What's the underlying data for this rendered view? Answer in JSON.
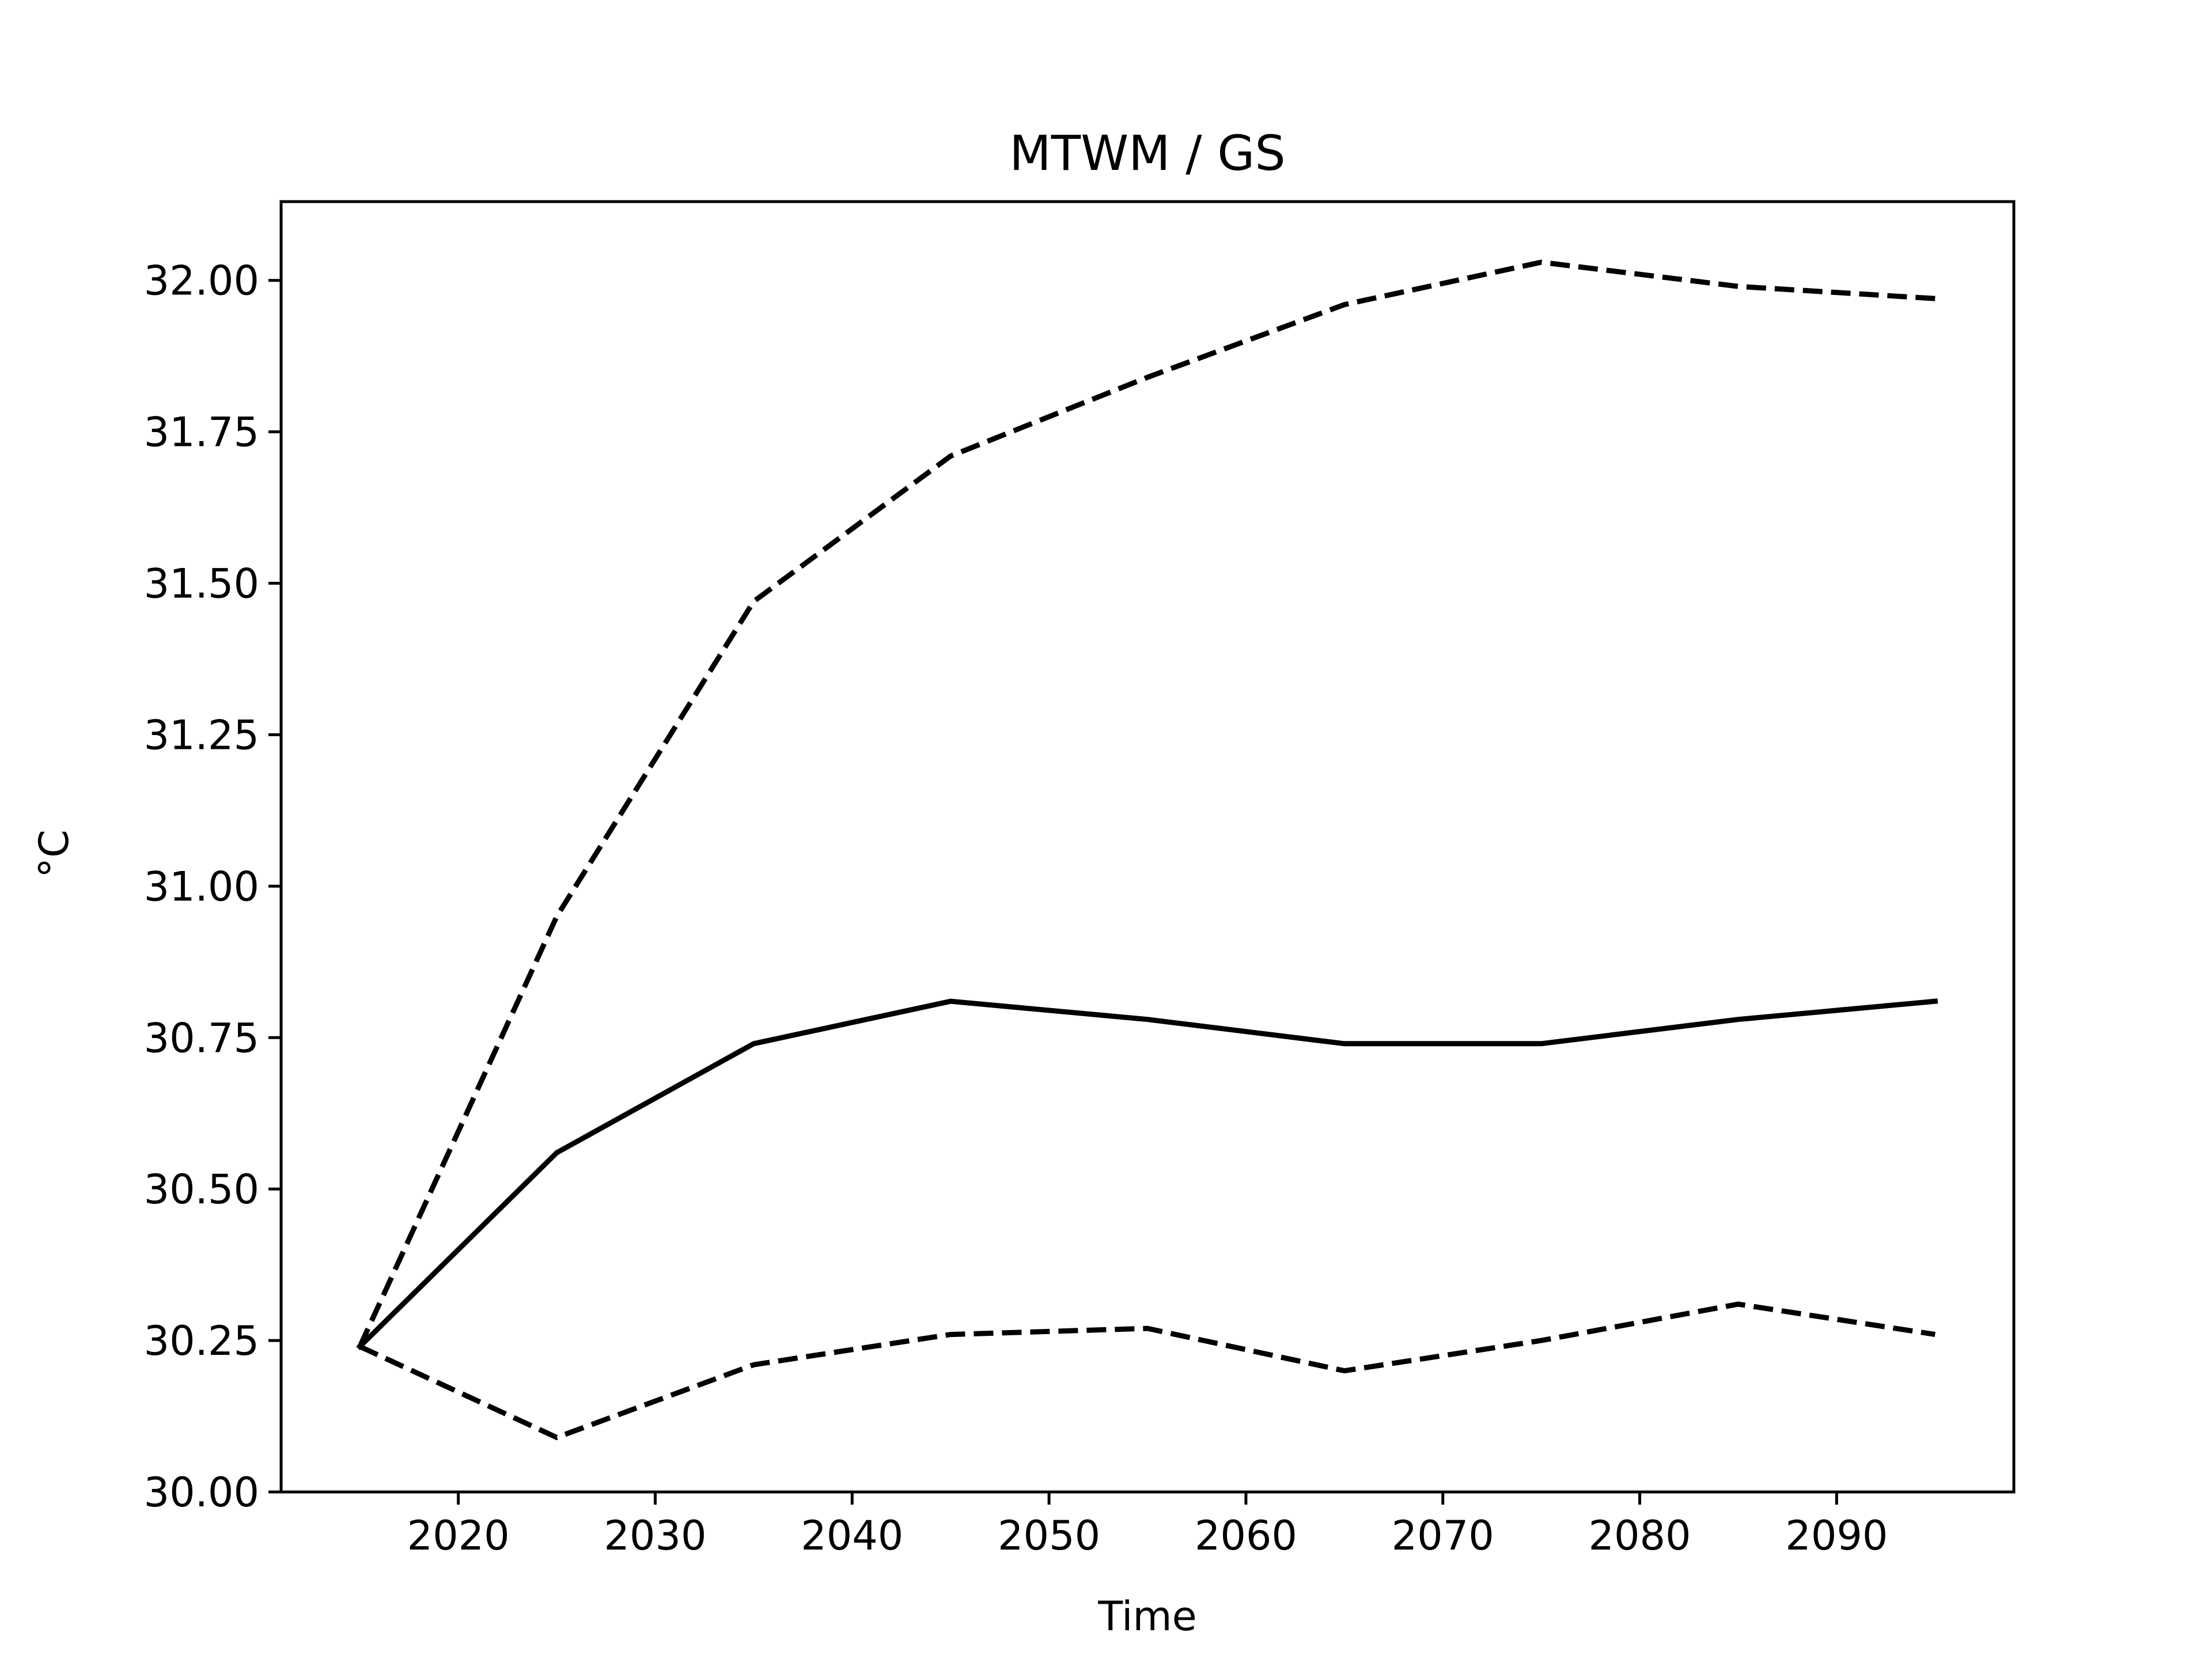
{
  "chart_data": {
    "type": "line",
    "title": "MTWM / GS",
    "xlabel": "Time",
    "ylabel": "°C",
    "xlim": [
      2011,
      2099
    ],
    "ylim": [
      30.0,
      32.13
    ],
    "xticks": [
      2020,
      2030,
      2040,
      2050,
      2060,
      2070,
      2080,
      2090
    ],
    "xtick_labels": [
      "2020",
      "2030",
      "2040",
      "2050",
      "2060",
      "2070",
      "2080",
      "2090"
    ],
    "yticks": [
      30.0,
      30.25,
      30.5,
      30.75,
      31.0,
      31.25,
      31.5,
      31.75,
      32.0
    ],
    "ytick_labels": [
      "30.00",
      "30.25",
      "30.50",
      "30.75",
      "31.00",
      "31.25",
      "31.50",
      "31.75",
      "32.00"
    ],
    "grid": false,
    "legend": "none",
    "color": "#000000",
    "x": [
      2015,
      2025,
      2035,
      2045,
      2055,
      2065,
      2075,
      2085,
      2095
    ],
    "series": [
      {
        "style": "dashed",
        "values": [
          30.24,
          30.95,
          31.47,
          31.71,
          31.84,
          31.96,
          32.03,
          31.99,
          31.97
        ]
      },
      {
        "style": "solid",
        "values": [
          30.24,
          30.56,
          30.74,
          30.81,
          30.78,
          30.74,
          30.74,
          30.78,
          30.81
        ]
      },
      {
        "style": "dashed",
        "values": [
          30.24,
          30.09,
          30.21,
          30.26,
          30.27,
          30.2,
          30.25,
          30.31,
          30.26
        ]
      }
    ]
  }
}
